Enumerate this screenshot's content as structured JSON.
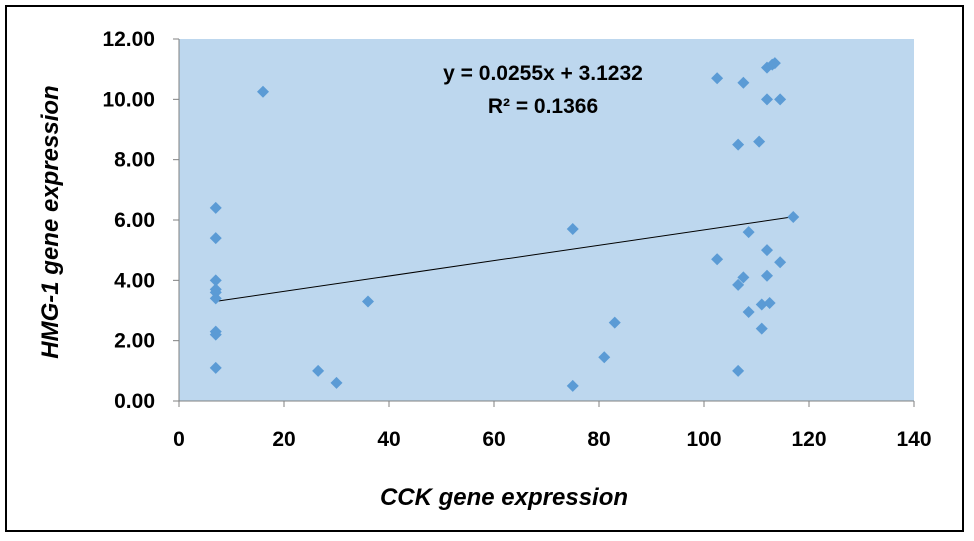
{
  "chart_data": {
    "type": "scatter",
    "xlabel": "CCK gene expression",
    "ylabel": "HMG-1 gene expression",
    "xlim": [
      0,
      140
    ],
    "ylim": [
      0,
      12
    ],
    "x_ticks": [
      "0",
      "20",
      "40",
      "60",
      "80",
      "100",
      "120",
      "140"
    ],
    "y_ticks": [
      "0.00",
      "2.00",
      "4.00",
      "6.00",
      "8.00",
      "10.00",
      "12.00"
    ],
    "plot_background": "#bdd7ee",
    "marker_color": "#5b9bd5",
    "marker": "diamond",
    "grid": false,
    "points": [
      [
        7,
        6.4
      ],
      [
        7,
        5.4
      ],
      [
        7,
        4.0
      ],
      [
        7,
        3.7
      ],
      [
        7,
        3.6
      ],
      [
        7,
        3.4
      ],
      [
        7,
        2.3
      ],
      [
        7,
        2.2
      ],
      [
        7,
        1.1
      ],
      [
        16,
        10.25
      ],
      [
        26.5,
        1.0
      ],
      [
        30,
        0.6
      ],
      [
        36,
        3.3
      ],
      [
        75,
        5.7
      ],
      [
        75,
        0.5
      ],
      [
        81,
        1.45
      ],
      [
        83,
        2.6
      ],
      [
        102.5,
        10.7
      ],
      [
        102.5,
        4.7
      ],
      [
        106.5,
        8.5
      ],
      [
        106.5,
        3.85
      ],
      [
        106.5,
        1.0
      ],
      [
        107.5,
        10.55
      ],
      [
        107.5,
        4.1
      ],
      [
        108.5,
        5.6
      ],
      [
        108.5,
        2.95
      ],
      [
        110.5,
        8.6
      ],
      [
        111,
        2.4
      ],
      [
        111,
        3.2
      ],
      [
        112,
        11.05
      ],
      [
        112,
        5.0
      ],
      [
        112,
        4.15
      ],
      [
        112,
        10.0
      ],
      [
        112.5,
        3.25
      ],
      [
        113,
        11.15
      ],
      [
        113.5,
        11.2
      ],
      [
        114.5,
        10.0
      ],
      [
        114.5,
        4.6
      ],
      [
        117,
        6.1
      ]
    ],
    "trendline": {
      "slope": 0.0255,
      "intercept": 3.1232,
      "x_range": [
        7,
        117
      ],
      "color": "#000000"
    },
    "annotations": {
      "equation": "y = 0.0255x + 3.1232",
      "r_squared": "R² = 0.1366"
    }
  }
}
